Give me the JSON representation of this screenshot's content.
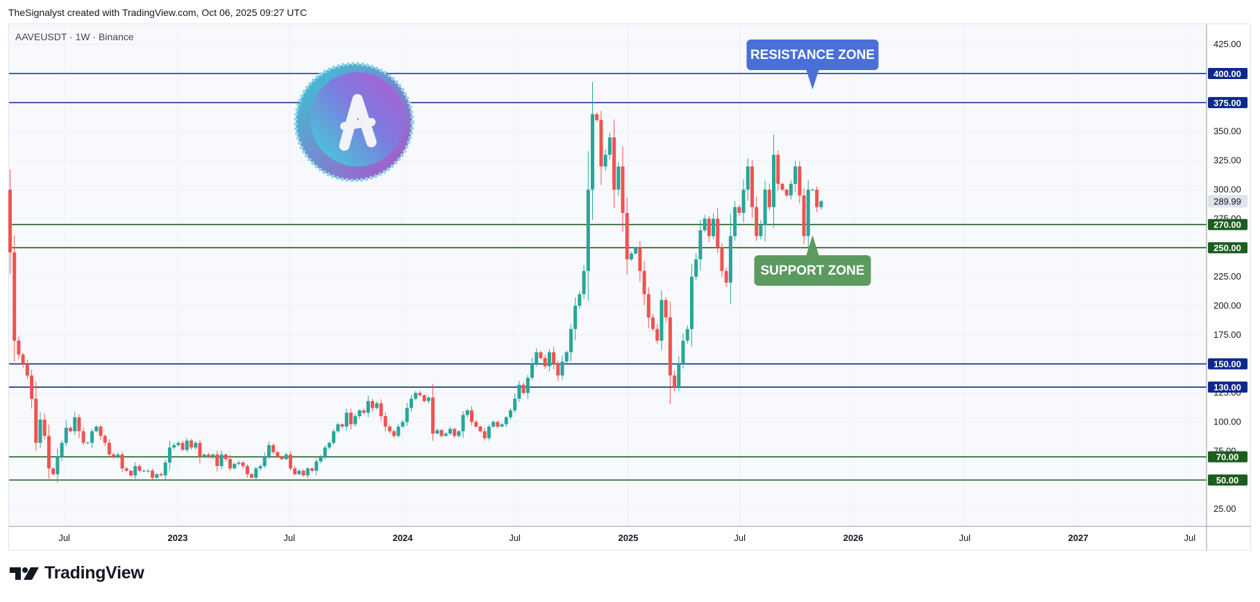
{
  "credit": "TheSignalyst created with TradingView.com, Oct 06, 2025 09:27 UTC",
  "symbol_line": "AAVEUSDT · 1W · Binance",
  "brand": "TradingView",
  "logo_icon": "aave-coin-icon",
  "chart_data": {
    "type": "candlestick",
    "symbol": "AAVEUSDT",
    "interval": "1W",
    "exchange": "Binance",
    "ylim": [
      0,
      440
    ],
    "y_ticks": [
      25,
      50,
      75,
      100,
      125,
      150,
      175,
      200,
      225,
      250,
      275,
      300,
      325,
      350,
      375,
      400,
      425
    ],
    "x_ticks": [
      {
        "label": "Jul",
        "date": "2022-07-01"
      },
      {
        "label": "2023",
        "date": "2023-01-01"
      },
      {
        "label": "Jul",
        "date": "2023-07-01"
      },
      {
        "label": "2024",
        "date": "2024-01-01"
      },
      {
        "label": "Jul",
        "date": "2024-07-01"
      },
      {
        "label": "2025",
        "date": "2025-01-01"
      },
      {
        "label": "Jul",
        "date": "2025-07-01"
      },
      {
        "label": "2026",
        "date": "2026-01-01"
      },
      {
        "label": "Jul",
        "date": "2026-07-01"
      },
      {
        "label": "2027",
        "date": "2027-01-01"
      },
      {
        "label": "Jul",
        "date": "2027-07-01"
      }
    ],
    "last_price": 289.99,
    "levels": [
      {
        "value": 400,
        "label": "400.00",
        "color": "#0d2a8a",
        "kind": "resistance"
      },
      {
        "value": 375,
        "label": "375.00",
        "color": "#0d2a8a",
        "kind": "resistance"
      },
      {
        "value": 270,
        "label": "270.00",
        "color": "#1b5e20",
        "kind": "support"
      },
      {
        "value": 250,
        "label": "250.00",
        "color": "#1b5e20",
        "kind": "support"
      },
      {
        "value": 150,
        "label": "150.00",
        "color": "#0d2a8a",
        "kind": "resistance"
      },
      {
        "value": 130,
        "label": "130.00",
        "color": "#0d2a8a",
        "kind": "resistance"
      },
      {
        "value": 70,
        "label": "70.00",
        "color": "#1b5e20",
        "kind": "support"
      },
      {
        "value": 50,
        "label": "50.00",
        "color": "#1b5e20",
        "kind": "support"
      }
    ],
    "annotations": [
      {
        "text": "RESISTANCE ZONE",
        "color": "#4a6fd8",
        "pointer": "down",
        "date": "2025-10-27"
      },
      {
        "text": "SUPPORT ZONE",
        "color": "#5c9a5f",
        "pointer": "up",
        "date": "2025-10-27"
      }
    ],
    "up_color": "#26a69a",
    "down_color": "#ef5350",
    "start_date": "2022-04-04",
    "closes": [
      246,
      170,
      158,
      150,
      140,
      120,
      82,
      102,
      88,
      60,
      55,
      70,
      82,
      95,
      92,
      104,
      92,
      82,
      82,
      92,
      96,
      88,
      82,
      72,
      70,
      72,
      60,
      58,
      54,
      62,
      58,
      58,
      58,
      52,
      55,
      54,
      65,
      78,
      80,
      82,
      76,
      84,
      78,
      82,
      70,
      72,
      70,
      72,
      62,
      72,
      68,
      60,
      64,
      65,
      62,
      55,
      52,
      60,
      62,
      70,
      80,
      74,
      70,
      68,
      72,
      60,
      55,
      58,
      54,
      60,
      58,
      66,
      70,
      78,
      82,
      92,
      98,
      96,
      108,
      98,
      105,
      110,
      108,
      118,
      112,
      116,
      105,
      96,
      92,
      88,
      96,
      100,
      112,
      120,
      125,
      123,
      118,
      121,
      90,
      93,
      88,
      90,
      94,
      88,
      92,
      106,
      110,
      100,
      96,
      92,
      86,
      96,
      100,
      96,
      98,
      104,
      110,
      120,
      132,
      125,
      138,
      150,
      160,
      155,
      148,
      160,
      150,
      140,
      152,
      160,
      180,
      200,
      210,
      230,
      300,
      365,
      360,
      320,
      330,
      345,
      300,
      320,
      280,
      240,
      245,
      250,
      230,
      210,
      190,
      180,
      170,
      205,
      190,
      140,
      130,
      150,
      170,
      180,
      225,
      240,
      265,
      275,
      260,
      275,
      250,
      230,
      220,
      260,
      285,
      280,
      300,
      320,
      285,
      260,
      270,
      300,
      285,
      330,
      305,
      300,
      295,
      305,
      320,
      295,
      260,
      300,
      300,
      285,
      290
    ]
  }
}
